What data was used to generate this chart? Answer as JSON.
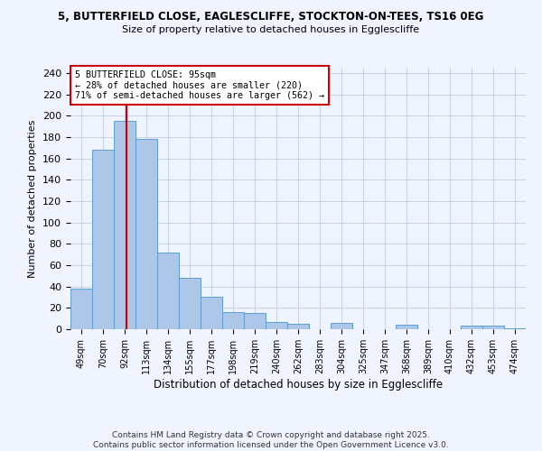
{
  "title1": "5, BUTTERFIELD CLOSE, EAGLESCLIFFE, STOCKTON-ON-TEES, TS16 0EG",
  "title2": "Size of property relative to detached houses in Egglescliffe",
  "xlabel": "Distribution of detached houses by size in Egglescliffe",
  "ylabel": "Number of detached properties",
  "bar_labels": [
    "49sqm",
    "70sqm",
    "92sqm",
    "113sqm",
    "134sqm",
    "155sqm",
    "177sqm",
    "198sqm",
    "219sqm",
    "240sqm",
    "262sqm",
    "283sqm",
    "304sqm",
    "325sqm",
    "347sqm",
    "368sqm",
    "389sqm",
    "410sqm",
    "432sqm",
    "453sqm",
    "474sqm"
  ],
  "bar_values": [
    38,
    168,
    195,
    178,
    72,
    48,
    30,
    16,
    15,
    7,
    5,
    0,
    6,
    0,
    0,
    4,
    0,
    0,
    3,
    3,
    1
  ],
  "bar_color": "#aec6e8",
  "bar_edge_color": "#5a9fd4",
  "vline_x": 2.0,
  "vline_color": "#cc0000",
  "annotation_title": "5 BUTTERFIELD CLOSE: 95sqm",
  "annotation_line2": "← 28% of detached houses are smaller (220)",
  "annotation_line3": "71% of semi-detached houses are larger (562) →",
  "annotation_box_color": "#ffffff",
  "annotation_box_edge": "#cc0000",
  "ylim": [
    0,
    245
  ],
  "yticks": [
    0,
    20,
    40,
    60,
    80,
    100,
    120,
    140,
    160,
    180,
    200,
    220,
    240
  ],
  "footer1": "Contains HM Land Registry data © Crown copyright and database right 2025.",
  "footer2": "Contains public sector information licensed under the Open Government Licence v3.0.",
  "bg_color": "#f0f4ff",
  "grid_color": "#c8d4e8"
}
